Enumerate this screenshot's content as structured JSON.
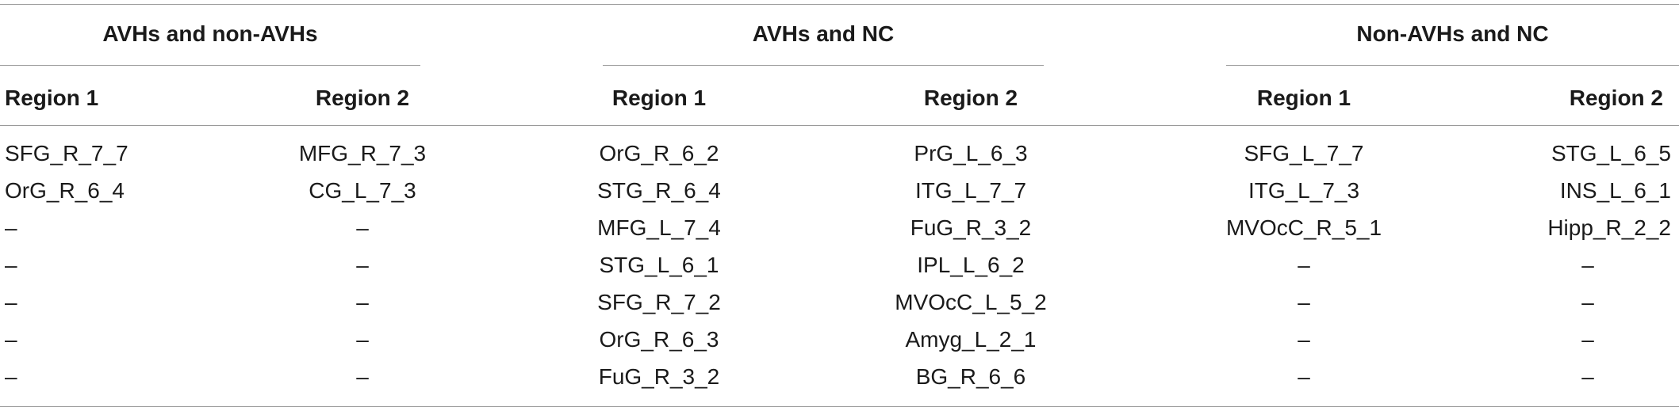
{
  "groups": [
    {
      "title": "AVHs and non-AVHs",
      "col1": "Region 1",
      "col2": "Region 2",
      "rows": [
        [
          "SFG_R_7_7",
          "MFG_R_7_3"
        ],
        [
          "OrG_R_6_4",
          "CG_L_7_3"
        ],
        [
          "–",
          "–"
        ],
        [
          "–",
          "–"
        ],
        [
          "–",
          "–"
        ],
        [
          "–",
          "–"
        ],
        [
          "–",
          "–"
        ]
      ]
    },
    {
      "title": "AVHs and NC",
      "col1": "Region 1",
      "col2": "Region 2",
      "rows": [
        [
          "OrG_R_6_2",
          "PrG_L_6_3"
        ],
        [
          "STG_R_6_4",
          "ITG_L_7_7"
        ],
        [
          "MFG_L_7_4",
          "FuG_R_3_2"
        ],
        [
          "STG_L_6_1",
          "IPL_L_6_2"
        ],
        [
          "SFG_R_7_2",
          "MVOcC_L_5_2"
        ],
        [
          "OrG_R_6_3",
          "Amyg_L_2_1"
        ],
        [
          "FuG_R_3_2",
          "BG_R_6_6"
        ]
      ]
    },
    {
      "title": "Non-AVHs and NC",
      "col1": "Region 1",
      "col2": "Region 2",
      "rows": [
        [
          "SFG_L_7_7",
          "STG_L_6_5"
        ],
        [
          "ITG_L_7_3",
          "INS_L_6_1"
        ],
        [
          "MVOcC_R_5_1",
          "Hipp_R_2_2"
        ],
        [
          "–",
          "–"
        ],
        [
          "–",
          "–"
        ],
        [
          "–",
          "–"
        ],
        [
          "–",
          "–"
        ]
      ]
    }
  ]
}
